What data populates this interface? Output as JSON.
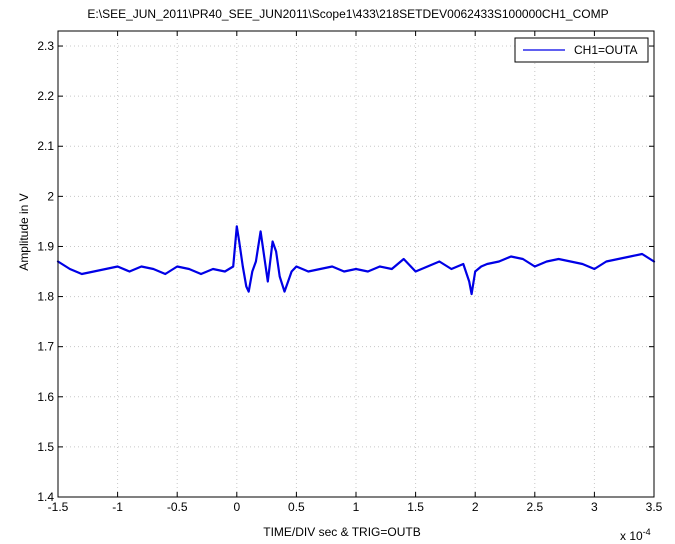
{
  "chart_data": {
    "type": "line",
    "title": "E:\\SEE_JUN_2011\\PR40_SEE_JUN2011\\Scope1\\433\\218SETDEV0062433S100000CH1_COMP",
    "xlabel": "TIME/DIV sec & TRIG=OUTB",
    "ylabel": "Amplitude in V",
    "x_exponent_label": "x 10",
    "x_exponent_power": "-4",
    "xlim": [
      -1.5,
      3.5
    ],
    "ylim": [
      1.4,
      2.33
    ],
    "xticks": [
      "-1.5",
      "-1",
      "-0.5",
      "0",
      "0.5",
      "1",
      "1.5",
      "2",
      "2.5",
      "3",
      "3.5"
    ],
    "xtick_values": [
      -1.5,
      -1,
      -0.5,
      0,
      0.5,
      1,
      1.5,
      2,
      2.5,
      3,
      3.5
    ],
    "yticks": [
      "1.4",
      "1.5",
      "1.6",
      "1.7",
      "1.8",
      "1.9",
      "2",
      "2.1",
      "2.2",
      "2.3"
    ],
    "ytick_values": [
      1.4,
      1.5,
      1.6,
      1.7,
      1.8,
      1.9,
      2.0,
      2.1,
      2.2,
      2.3
    ],
    "grid": true,
    "legend_position": "top-right",
    "series": [
      {
        "name": "CH1=OUTA",
        "color": "#0000e6",
        "x": [
          -1.5,
          -1.4,
          -1.3,
          -1.2,
          -1.1,
          -1.0,
          -0.9,
          -0.8,
          -0.7,
          -0.6,
          -0.5,
          -0.4,
          -0.3,
          -0.2,
          -0.1,
          -0.03,
          0.0,
          0.02,
          0.05,
          0.08,
          0.1,
          0.13,
          0.16,
          0.2,
          0.23,
          0.26,
          0.3,
          0.33,
          0.36,
          0.4,
          0.43,
          0.46,
          0.5,
          0.55,
          0.6,
          0.7,
          0.8,
          0.9,
          1.0,
          1.1,
          1.2,
          1.3,
          1.4,
          1.5,
          1.6,
          1.7,
          1.8,
          1.9,
          1.95,
          1.97,
          2.0,
          2.05,
          2.1,
          2.2,
          2.3,
          2.4,
          2.5,
          2.6,
          2.7,
          2.8,
          2.9,
          3.0,
          3.1,
          3.2,
          3.3,
          3.4,
          3.5
        ],
        "y": [
          1.87,
          1.855,
          1.845,
          1.85,
          1.855,
          1.86,
          1.85,
          1.86,
          1.855,
          1.845,
          1.86,
          1.855,
          1.845,
          1.855,
          1.85,
          1.86,
          1.94,
          1.91,
          1.86,
          1.82,
          1.81,
          1.85,
          1.87,
          1.93,
          1.88,
          1.83,
          1.91,
          1.89,
          1.84,
          1.81,
          1.83,
          1.85,
          1.86,
          1.855,
          1.85,
          1.855,
          1.86,
          1.85,
          1.855,
          1.85,
          1.86,
          1.855,
          1.875,
          1.85,
          1.86,
          1.87,
          1.855,
          1.865,
          1.83,
          1.805,
          1.85,
          1.86,
          1.865,
          1.87,
          1.88,
          1.875,
          1.86,
          1.87,
          1.875,
          1.87,
          1.865,
          1.855,
          1.87,
          1.875,
          1.88,
          1.885,
          1.87
        ]
      }
    ]
  }
}
